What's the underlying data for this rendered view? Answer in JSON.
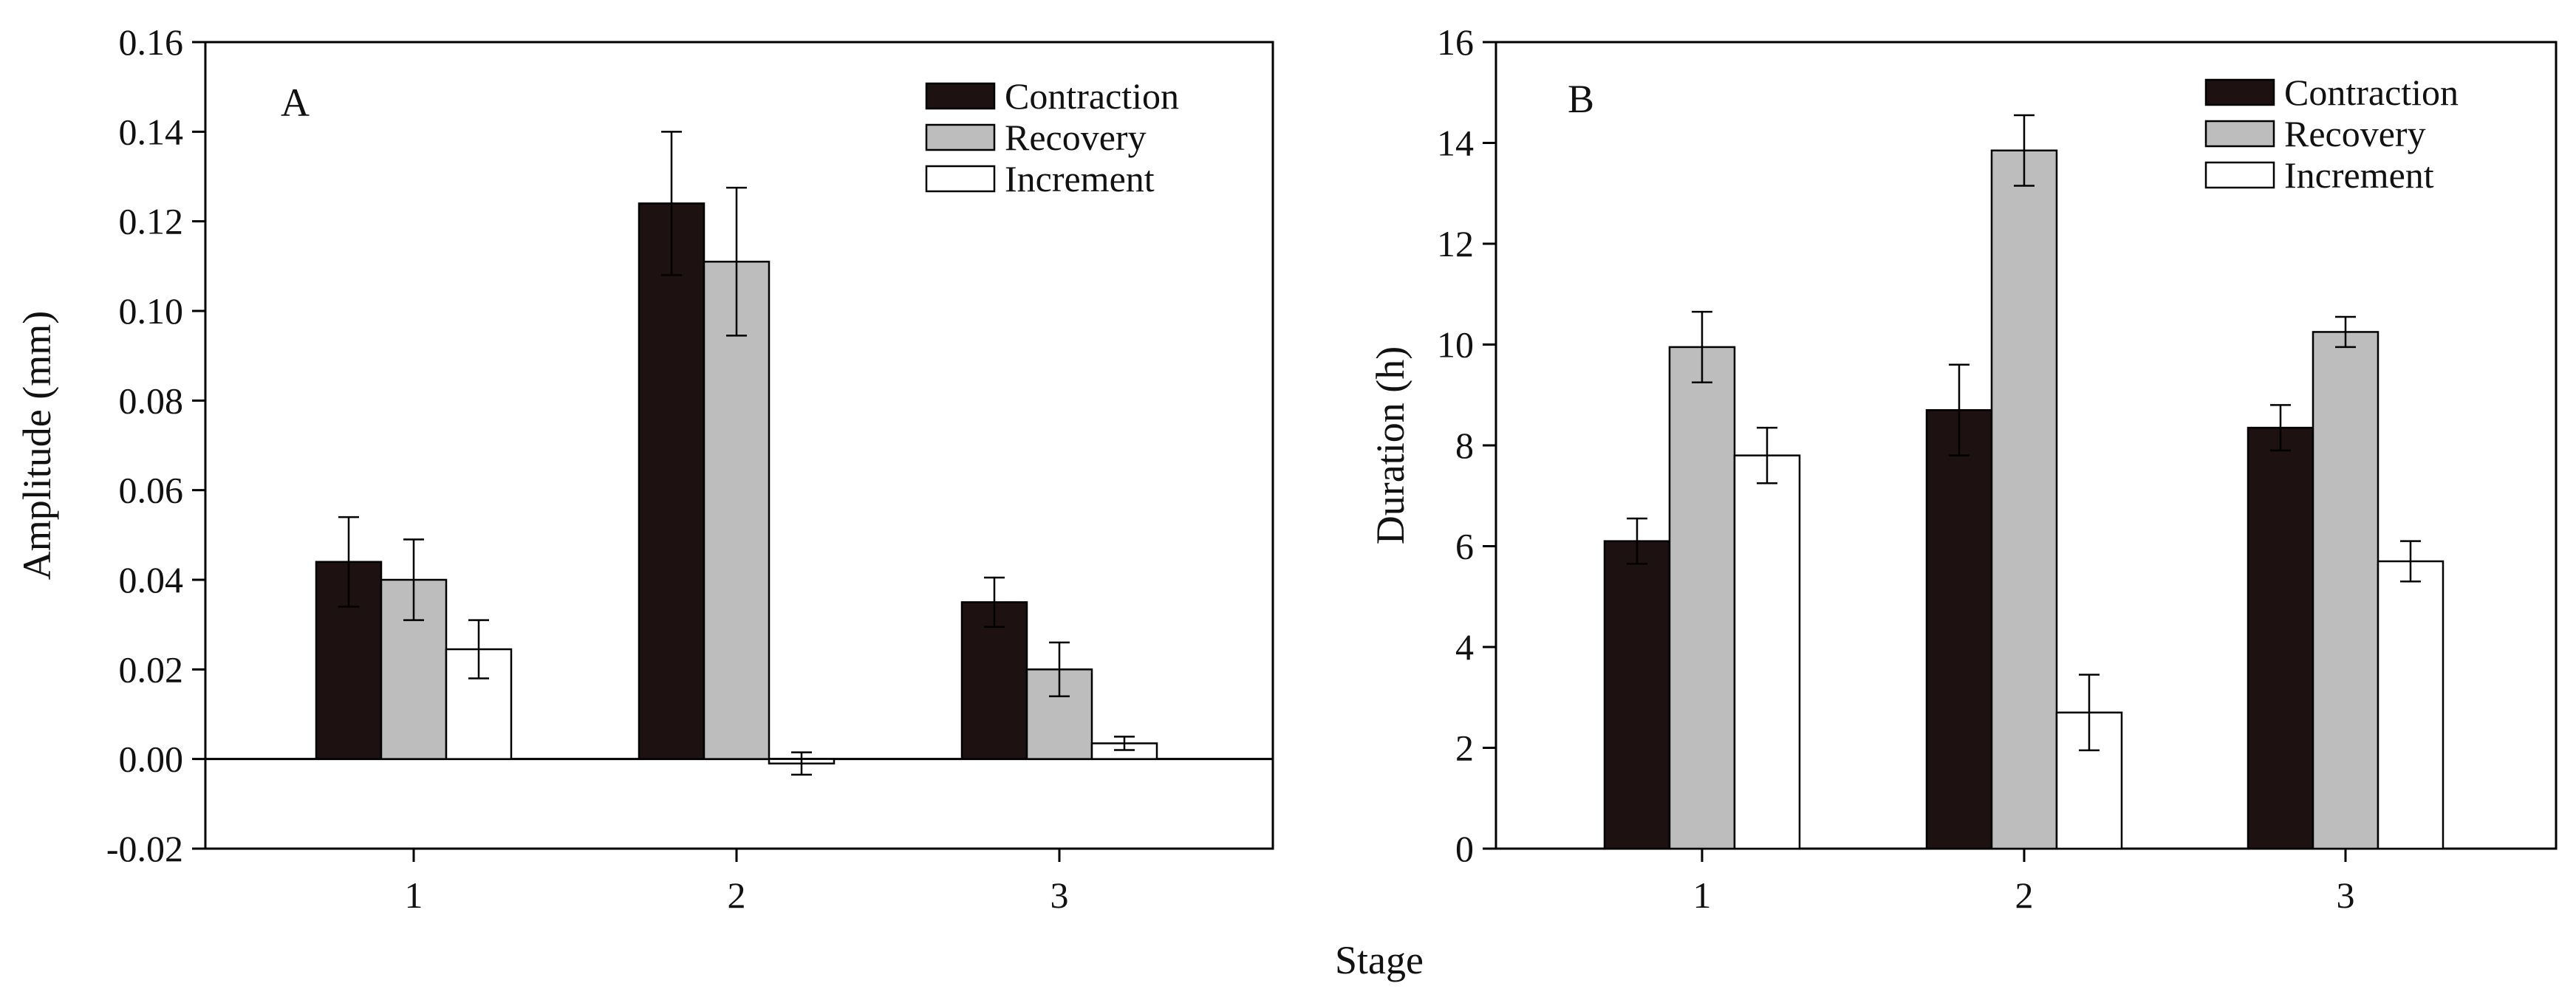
{
  "figure": {
    "x_shared_label": "Stage"
  },
  "colors": {
    "Contraction": "#1e1111",
    "Recovery": "#bdbdbd",
    "Increment": "#ffffff",
    "stroke": "#000000"
  },
  "chart_data": [
    {
      "type": "bar",
      "panel_label": "A",
      "ylabel": "Amplitude (mm)",
      "xlabel": "Stage",
      "categories": [
        "1",
        "2",
        "3"
      ],
      "ylim": [
        -0.02,
        0.16
      ],
      "yticks": [
        -0.02,
        0.0,
        0.02,
        0.04,
        0.06,
        0.08,
        0.1,
        0.12,
        0.14,
        0.16
      ],
      "ytick_labels": [
        "-0.02",
        "0.00",
        "0.02",
        "0.04",
        "0.06",
        "0.08",
        "0.10",
        "0.12",
        "0.14",
        "0.16"
      ],
      "zero_line": true,
      "grid": false,
      "legend_position": "top-right",
      "series": [
        {
          "name": "Contraction",
          "values": [
            0.044,
            0.124,
            0.035
          ],
          "errors": [
            0.01,
            0.016,
            0.0055
          ]
        },
        {
          "name": "Recovery",
          "values": [
            0.04,
            0.111,
            0.02
          ],
          "errors": [
            0.009,
            0.0165,
            0.006
          ]
        },
        {
          "name": "Increment",
          "values": [
            0.0245,
            -0.001,
            0.0035
          ],
          "errors": [
            0.0065,
            0.0025,
            0.0015
          ]
        }
      ]
    },
    {
      "type": "bar",
      "panel_label": "B",
      "ylabel": "Duration (h)",
      "xlabel": "Stage",
      "categories": [
        "1",
        "2",
        "3"
      ],
      "ylim": [
        0,
        16
      ],
      "yticks": [
        0,
        2,
        4,
        6,
        8,
        10,
        12,
        14,
        16
      ],
      "ytick_labels": [
        "0",
        "2",
        "4",
        "6",
        "8",
        "10",
        "12",
        "14",
        "16"
      ],
      "zero_line": false,
      "grid": false,
      "legend_position": "top-right",
      "series": [
        {
          "name": "Contraction",
          "values": [
            6.1,
            8.7,
            8.35
          ],
          "errors": [
            0.45,
            0.9,
            0.45
          ]
        },
        {
          "name": "Recovery",
          "values": [
            9.95,
            13.85,
            10.25
          ],
          "errors": [
            0.7,
            0.7,
            0.3
          ]
        },
        {
          "name": "Increment",
          "values": [
            7.8,
            2.7,
            5.7
          ],
          "errors": [
            0.55,
            0.75,
            0.4
          ]
        }
      ]
    }
  ]
}
